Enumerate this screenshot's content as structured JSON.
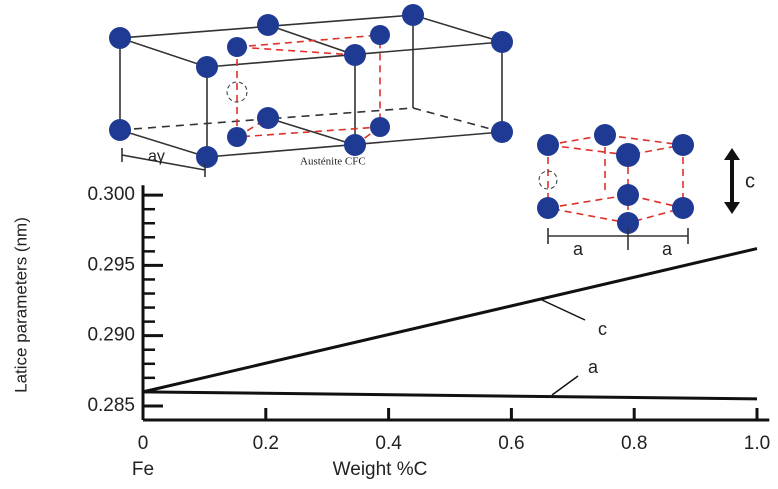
{
  "chart_data": {
    "type": "line",
    "x_label": "Weight %C",
    "x_sublabel": "Fe",
    "y_label": "Latice parameters (nm)",
    "x": [
      0,
      1.0
    ],
    "series": [
      {
        "name": "c",
        "color": "#111111",
        "values": [
          0.286,
          0.2962
        ]
      },
      {
        "name": "a",
        "color": "#111111",
        "values": [
          0.286,
          0.2855
        ]
      }
    ],
    "xlim": [
      0,
      1.02
    ],
    "ylim": [
      0.284,
      0.3007
    ],
    "xticks": [
      0,
      0.2,
      0.4,
      0.6,
      0.8,
      {
        "value": 1,
        "label": "1.0"
      }
    ],
    "yticks": [
      {
        "value": 0.285,
        "label": "0.285"
      },
      {
        "value": 0.29,
        "label": "0.290"
      },
      {
        "value": 0.295,
        "label": "0.295"
      },
      {
        "value": 0.3,
        "label": "0.300"
      }
    ],
    "yminorticks": [
      0.284,
      0.286,
      0.287,
      0.288,
      0.289,
      0.291,
      0.292,
      0.293,
      0.294,
      0.296,
      0.297,
      0.298,
      0.299
    ],
    "annotations": [
      "c",
      "a"
    ]
  },
  "diagram_labels": {
    "austenite_edge": "aγ",
    "austenite_name": "Austénite CFC",
    "martensite_c": "c",
    "martensite_a1": "a",
    "martensite_a2": "a"
  }
}
